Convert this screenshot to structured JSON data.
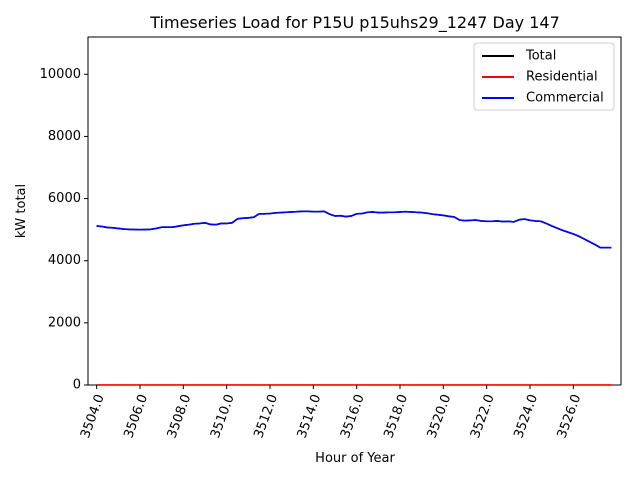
{
  "chart_data": {
    "type": "line",
    "title": "Timeseries Load for P15U p15uhs29_1247  Day 147",
    "xlabel": "Hour of Year",
    "ylabel": "kW total",
    "xlim": [
      3503.6,
      3528.2
    ],
    "ylim": [
      0,
      11200
    ],
    "xticks": [
      3504,
      3506,
      3508,
      3510,
      3512,
      3514,
      3516,
      3518,
      3520,
      3522,
      3524,
      3526
    ],
    "xtick_labels": [
      "3504.0",
      "3506.0",
      "3508.0",
      "3510.0",
      "3512.0",
      "3514.0",
      "3516.0",
      "3518.0",
      "3520.0",
      "3522.0",
      "3524.0",
      "3526.0"
    ],
    "yticks": [
      0,
      2000,
      4000,
      6000,
      8000,
      10000
    ],
    "ytick_labels": [
      "0",
      "2000",
      "4000",
      "6000",
      "8000",
      "10000"
    ],
    "legend_position": "top-right",
    "x": [
      3504.0,
      3504.25,
      3504.5,
      3504.75,
      3505.0,
      3505.25,
      3505.5,
      3505.75,
      3506.0,
      3506.25,
      3506.5,
      3506.75,
      3507.0,
      3507.25,
      3507.5,
      3507.75,
      3508.0,
      3508.25,
      3508.5,
      3508.75,
      3509.0,
      3509.25,
      3509.5,
      3509.75,
      3510.0,
      3510.25,
      3510.5,
      3510.75,
      3511.0,
      3511.25,
      3511.5,
      3511.75,
      3512.0,
      3512.25,
      3512.5,
      3512.75,
      3513.0,
      3513.25,
      3513.5,
      3513.75,
      3514.0,
      3514.25,
      3514.5,
      3514.75,
      3515.0,
      3515.25,
      3515.5,
      3515.75,
      3516.0,
      3516.25,
      3516.5,
      3516.75,
      3517.0,
      3517.25,
      3517.5,
      3517.75,
      3518.0,
      3518.25,
      3518.5,
      3518.75,
      3519.0,
      3519.25,
      3519.5,
      3519.75,
      3520.0,
      3520.25,
      3520.5,
      3520.75,
      3521.0,
      3521.25,
      3521.5,
      3521.75,
      3522.0,
      3522.25,
      3522.5,
      3522.75,
      3523.0,
      3523.25,
      3523.5,
      3523.75,
      3524.0,
      3524.25,
      3524.5,
      3524.75,
      3525.0,
      3525.25,
      3525.5,
      3525.75,
      3526.0,
      3526.25,
      3526.5,
      3526.75,
      3527.0,
      3527.25,
      3527.5,
      3527.75
    ],
    "series": [
      {
        "name": "Total",
        "color": "#000000",
        "values": [
          5120,
          5100,
          5070,
          5060,
          5040,
          5020,
          5010,
          5005,
          5000,
          5005,
          5010,
          5040,
          5080,
          5080,
          5080,
          5110,
          5140,
          5160,
          5190,
          5200,
          5220,
          5170,
          5160,
          5200,
          5200,
          5220,
          5350,
          5370,
          5380,
          5400,
          5510,
          5510,
          5520,
          5540,
          5550,
          5560,
          5570,
          5580,
          5590,
          5590,
          5580,
          5580,
          5590,
          5500,
          5440,
          5450,
          5420,
          5440,
          5510,
          5520,
          5560,
          5570,
          5550,
          5550,
          5560,
          5560,
          5570,
          5580,
          5570,
          5560,
          5550,
          5530,
          5500,
          5480,
          5460,
          5430,
          5410,
          5310,
          5290,
          5300,
          5310,
          5280,
          5270,
          5270,
          5280,
          5260,
          5270,
          5250,
          5320,
          5340,
          5300,
          5280,
          5270,
          5200,
          5120,
          5050,
          4980,
          4920,
          4860,
          4790,
          4700,
          4610,
          4520,
          4420,
          4420,
          4420
        ]
      },
      {
        "name": "Residential",
        "color": "#ff0000",
        "values": [
          2,
          2,
          2,
          2,
          2,
          2,
          2,
          2,
          2,
          2,
          2,
          2,
          2,
          2,
          2,
          2,
          2,
          2,
          2,
          2,
          2,
          2,
          2,
          2,
          2,
          2,
          2,
          2,
          2,
          2,
          2,
          2,
          2,
          2,
          2,
          2,
          2,
          2,
          2,
          2,
          2,
          2,
          2,
          2,
          2,
          2,
          2,
          2,
          2,
          2,
          2,
          2,
          2,
          2,
          2,
          2,
          2,
          2,
          2,
          2,
          2,
          2,
          2,
          2,
          2,
          2,
          2,
          2,
          2,
          2,
          2,
          2,
          2,
          2,
          2,
          2,
          2,
          2,
          2,
          2,
          2,
          2,
          2,
          2,
          2,
          2,
          2,
          2,
          2,
          2,
          2,
          2,
          2,
          2,
          2,
          2
        ]
      },
      {
        "name": "Commercial",
        "color": "#0000ff",
        "values": [
          5118,
          5098,
          5068,
          5058,
          5038,
          5018,
          5008,
          5003,
          4998,
          5003,
          5008,
          5038,
          5078,
          5078,
          5078,
          5108,
          5138,
          5158,
          5188,
          5198,
          5218,
          5168,
          5158,
          5198,
          5198,
          5218,
          5348,
          5368,
          5378,
          5398,
          5508,
          5508,
          5518,
          5538,
          5548,
          5558,
          5568,
          5578,
          5588,
          5588,
          5578,
          5578,
          5588,
          5498,
          5438,
          5448,
          5418,
          5438,
          5508,
          5518,
          5558,
          5568,
          5548,
          5548,
          5558,
          5558,
          5568,
          5578,
          5568,
          5558,
          5548,
          5528,
          5498,
          5478,
          5458,
          5428,
          5408,
          5308,
          5288,
          5298,
          5308,
          5278,
          5268,
          5268,
          5278,
          5258,
          5268,
          5248,
          5318,
          5338,
          5298,
          5278,
          5268,
          5198,
          5118,
          5048,
          4978,
          4918,
          4858,
          4788,
          4698,
          4608,
          4518,
          4418,
          4418,
          4418
        ]
      }
    ]
  }
}
